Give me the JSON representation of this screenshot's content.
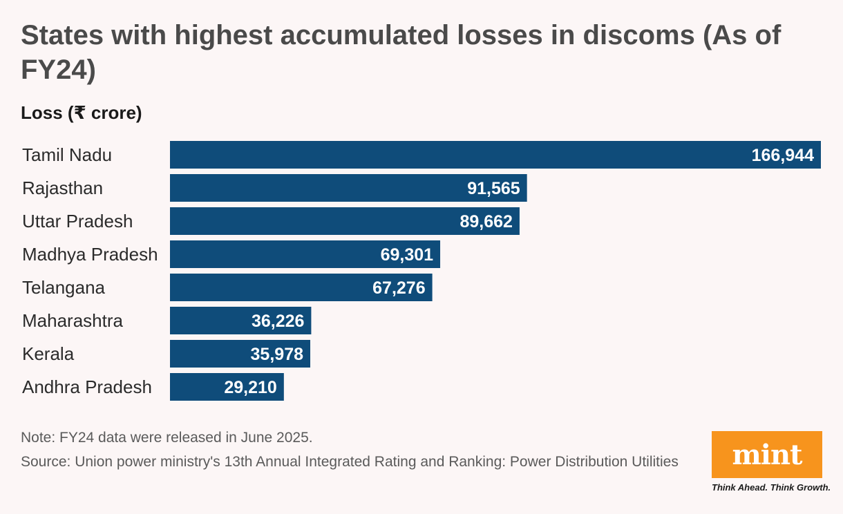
{
  "chart_data": {
    "type": "bar",
    "orientation": "horizontal",
    "title": "States with highest accumulated losses in discoms (As of FY24)",
    "ylabel": "Loss (₹ crore)",
    "categories": [
      "Tamil Nadu",
      "Rajasthan",
      "Uttar Pradesh",
      "Madhya Pradesh",
      "Telangana",
      "Maharashtra",
      "Kerala",
      "Andhra Pradesh"
    ],
    "values": [
      166944,
      91565,
      89662,
      69301,
      67276,
      36226,
      35978,
      29210
    ],
    "value_labels": [
      "166,944",
      "91,565",
      "89,662",
      "69,301",
      "67,276",
      "36,226",
      "35,978",
      "29,210"
    ],
    "xlim": [
      0,
      166944
    ],
    "grid": false,
    "bar_color": "#0f4c7a"
  },
  "note": "Note: FY24 data were released in June 2025.",
  "source": "Source: Union power ministry's 13th Annual Integrated Rating and Ranking: Power Distribution Utilities",
  "brand": {
    "logo": "mint",
    "tagline": "Think Ahead. Think Growth.",
    "color": "#f7941d"
  }
}
